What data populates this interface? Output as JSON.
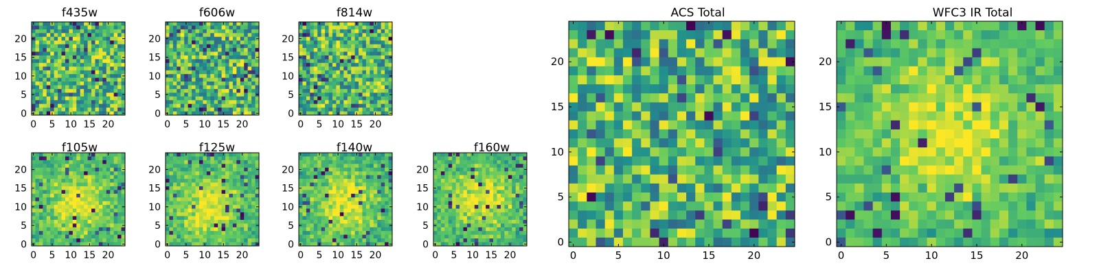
{
  "figure": {
    "type": "heatmap",
    "colormap": "viridis",
    "colormap_stops": [
      "#440154",
      "#3b528b",
      "#21908d",
      "#5dc963",
      "#fde725"
    ]
  },
  "chart_data": [
    {
      "type": "heatmap",
      "title": "f435w",
      "grid_size": 25,
      "xlim": [
        0,
        24
      ],
      "ylim": [
        0,
        24
      ],
      "xticks": [
        "0",
        "5",
        "10",
        "15",
        "20"
      ],
      "yticks": [
        "0",
        "5",
        "10",
        "15",
        "20"
      ],
      "value_range": [
        0,
        1
      ],
      "seed": 11,
      "blob": null
    },
    {
      "type": "heatmap",
      "title": "f606w",
      "grid_size": 25,
      "xlim": [
        0,
        24
      ],
      "ylim": [
        0,
        24
      ],
      "xticks": [
        "0",
        "5",
        "10",
        "15",
        "20"
      ],
      "yticks": [
        "0",
        "5",
        "10",
        "15",
        "20"
      ],
      "value_range": [
        0,
        1
      ],
      "seed": 23,
      "blob": null
    },
    {
      "type": "heatmap",
      "title": "f814w",
      "grid_size": 25,
      "xlim": [
        0,
        24
      ],
      "ylim": [
        0,
        24
      ],
      "xticks": [
        "0",
        "5",
        "10",
        "15",
        "20"
      ],
      "yticks": [
        "0",
        "5",
        "10",
        "15",
        "20"
      ],
      "value_range": [
        0,
        1
      ],
      "seed": 37,
      "blob": null
    },
    {
      "type": "heatmap",
      "title": "f105w",
      "grid_size": 25,
      "xlim": [
        0,
        24
      ],
      "ylim": [
        0,
        24
      ],
      "xticks": [
        "0",
        "5",
        "10",
        "15",
        "20"
      ],
      "yticks": [
        "0",
        "5",
        "10",
        "15",
        "20"
      ],
      "value_range": [
        0,
        1
      ],
      "seed": 41,
      "blob": [
        12,
        13
      ]
    },
    {
      "type": "heatmap",
      "title": "f125w",
      "grid_size": 25,
      "xlim": [
        0,
        24
      ],
      "ylim": [
        0,
        24
      ],
      "xticks": [
        "0",
        "5",
        "10",
        "15",
        "20"
      ],
      "yticks": [
        "0",
        "5",
        "10",
        "15",
        "20"
      ],
      "value_range": [
        0,
        1
      ],
      "seed": 53,
      "blob": [
        11,
        14
      ]
    },
    {
      "type": "heatmap",
      "title": "f140w",
      "grid_size": 25,
      "xlim": [
        0,
        24
      ],
      "ylim": [
        0,
        24
      ],
      "xticks": [
        "0",
        "5",
        "10",
        "15",
        "20"
      ],
      "yticks": [
        "0",
        "5",
        "10",
        "15",
        "20"
      ],
      "value_range": [
        0,
        1
      ],
      "seed": 67,
      "blob": [
        12,
        13
      ]
    },
    {
      "type": "heatmap",
      "title": "f160w",
      "grid_size": 25,
      "xlim": [
        0,
        24
      ],
      "ylim": [
        0,
        24
      ],
      "xticks": [
        "0",
        "5",
        "10",
        "15",
        "20"
      ],
      "yticks": [
        "0",
        "5",
        "10",
        "15",
        "20"
      ],
      "value_range": [
        0,
        1
      ],
      "seed": 79,
      "blob": [
        12,
        12
      ]
    },
    {
      "type": "heatmap",
      "title": "ACS Total",
      "grid_size": 25,
      "xlim": [
        0,
        24
      ],
      "ylim": [
        0,
        24
      ],
      "xticks": [
        "0",
        "5",
        "10",
        "15",
        "20"
      ],
      "yticks": [
        "0",
        "5",
        "10",
        "15",
        "20"
      ],
      "value_range": [
        0,
        1
      ],
      "seed": 97,
      "blob": null
    },
    {
      "type": "heatmap",
      "title": "WFC3 IR Total",
      "grid_size": 25,
      "xlim": [
        0,
        24
      ],
      "ylim": [
        0,
        24
      ],
      "xticks": [
        "0",
        "5",
        "10",
        "15",
        "20"
      ],
      "yticks": [
        "0",
        "5",
        "10",
        "15",
        "20"
      ],
      "value_range": [
        0,
        1
      ],
      "seed": 113,
      "blob": [
        12,
        12
      ]
    }
  ]
}
